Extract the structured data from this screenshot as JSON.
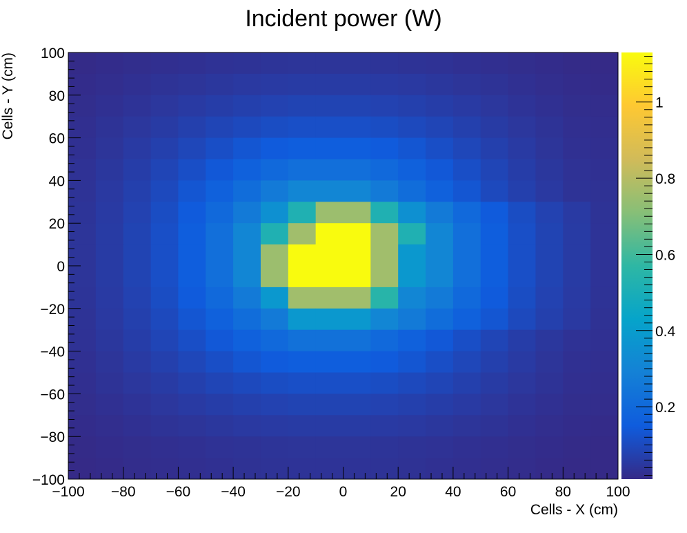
{
  "chart_data": {
    "type": "heatmap",
    "title": "Incident power (W)",
    "xlabel": "Cells - X (cm)",
    "ylabel": "Cells - Y (cm)",
    "xlim": [
      -100,
      100
    ],
    "ylim": [
      -100,
      100
    ],
    "x_ticks": [
      -100,
      -80,
      -60,
      -40,
      -20,
      0,
      20,
      40,
      60,
      80,
      100
    ],
    "y_ticks": [
      -100,
      -80,
      -60,
      -40,
      -20,
      0,
      20,
      40,
      60,
      80,
      100
    ],
    "x_tick_labels": [
      "−100",
      "−80",
      "−60",
      "−40",
      "−20",
      "0",
      "20",
      "40",
      "60",
      "80",
      "100"
    ],
    "y_tick_labels": [
      "−100",
      "−80",
      "−60",
      "−40",
      "−20",
      "0",
      "20",
      "40",
      "60",
      "80",
      "100"
    ],
    "bins": {
      "x_edges": [
        -100,
        -90,
        -80,
        -70,
        -60,
        -50,
        -40,
        -30,
        -20,
        -10,
        10,
        20,
        30,
        40,
        50,
        60,
        70,
        80,
        90,
        100
      ],
      "y_edges": [
        -100,
        -90,
        -80,
        -70,
        -60,
        -50,
        -40,
        -30,
        -20,
        -10,
        10,
        20,
        30,
        40,
        50,
        60,
        70,
        80,
        90,
        100
      ]
    },
    "function_note": "",
    "colorbar": {
      "min": 0.01,
      "max": 1.13,
      "ticks": [
        0.2,
        0.4,
        0.6,
        0.8,
        1
      ],
      "tick_labels": [
        "0.2",
        "0.4",
        "0.6",
        "0.8",
        "1"
      ],
      "palette": [
        "#352a87",
        "#0f5cdd",
        "#1481d6",
        "#06a4ca",
        "#2eb7a4",
        "#87bf77",
        "#d1bb59",
        "#fec832",
        "#f9fb0e"
      ]
    },
    "grid": false,
    "values": [
      [
        0.012,
        0.016,
        0.02,
        0.024,
        0.028,
        0.032,
        0.035,
        0.038,
        0.04,
        0.04,
        0.038,
        0.035,
        0.032,
        0.028,
        0.024,
        0.02,
        0.016,
        0.012,
        0.01
      ],
      [
        0.016,
        0.022,
        0.028,
        0.034,
        0.04,
        0.046,
        0.052,
        0.056,
        0.058,
        0.058,
        0.056,
        0.052,
        0.046,
        0.04,
        0.034,
        0.028,
        0.022,
        0.016,
        0.014
      ],
      [
        0.02,
        0.028,
        0.036,
        0.045,
        0.055,
        0.064,
        0.072,
        0.078,
        0.082,
        0.082,
        0.078,
        0.072,
        0.064,
        0.055,
        0.045,
        0.036,
        0.028,
        0.02,
        0.018
      ],
      [
        0.024,
        0.034,
        0.045,
        0.058,
        0.072,
        0.086,
        0.098,
        0.108,
        0.114,
        0.114,
        0.108,
        0.098,
        0.086,
        0.072,
        0.058,
        0.045,
        0.034,
        0.024,
        0.021
      ],
      [
        0.028,
        0.04,
        0.055,
        0.072,
        0.092,
        0.112,
        0.132,
        0.148,
        0.158,
        0.158,
        0.148,
        0.132,
        0.112,
        0.092,
        0.072,
        0.055,
        0.04,
        0.028,
        0.025
      ],
      [
        0.032,
        0.046,
        0.064,
        0.086,
        0.112,
        0.14,
        0.17,
        0.198,
        0.22,
        0.22,
        0.198,
        0.17,
        0.14,
        0.112,
        0.086,
        0.064,
        0.046,
        0.032,
        0.028
      ],
      [
        0.035,
        0.052,
        0.072,
        0.098,
        0.132,
        0.17,
        0.215,
        0.265,
        0.31,
        0.31,
        0.265,
        0.215,
        0.17,
        0.132,
        0.098,
        0.072,
        0.052,
        0.035,
        0.031
      ],
      [
        0.038,
        0.056,
        0.078,
        0.108,
        0.148,
        0.198,
        0.265,
        0.35,
        0.52,
        0.75,
        0.52,
        0.35,
        0.265,
        0.198,
        0.148,
        0.108,
        0.078,
        0.056,
        0.034
      ],
      [
        0.04,
        0.058,
        0.082,
        0.114,
        0.158,
        0.22,
        0.31,
        0.52,
        0.76,
        1.13,
        0.76,
        0.52,
        0.31,
        0.22,
        0.158,
        0.114,
        0.082,
        0.058,
        0.036
      ],
      [
        0.04,
        0.058,
        0.082,
        0.114,
        0.158,
        0.22,
        0.31,
        0.75,
        1.13,
        1.13,
        0.76,
        0.38,
        0.31,
        0.22,
        0.158,
        0.114,
        0.082,
        0.058,
        0.036
      ],
      [
        0.038,
        0.056,
        0.078,
        0.108,
        0.148,
        0.198,
        0.265,
        0.38,
        0.76,
        0.76,
        0.55,
        0.31,
        0.265,
        0.198,
        0.148,
        0.108,
        0.078,
        0.056,
        0.034
      ],
      [
        0.035,
        0.052,
        0.072,
        0.098,
        0.132,
        0.17,
        0.215,
        0.265,
        0.38,
        0.38,
        0.31,
        0.265,
        0.215,
        0.17,
        0.132,
        0.098,
        0.072,
        0.052,
        0.031
      ],
      [
        0.032,
        0.046,
        0.064,
        0.086,
        0.112,
        0.14,
        0.17,
        0.198,
        0.23,
        0.23,
        0.198,
        0.17,
        0.14,
        0.112,
        0.086,
        0.064,
        0.046,
        0.032,
        0.028
      ],
      [
        0.028,
        0.04,
        0.055,
        0.072,
        0.092,
        0.112,
        0.132,
        0.148,
        0.158,
        0.158,
        0.148,
        0.132,
        0.112,
        0.092,
        0.072,
        0.055,
        0.04,
        0.028,
        0.025
      ],
      [
        0.024,
        0.034,
        0.045,
        0.058,
        0.072,
        0.086,
        0.098,
        0.108,
        0.114,
        0.114,
        0.108,
        0.098,
        0.086,
        0.072,
        0.058,
        0.045,
        0.034,
        0.024,
        0.021
      ],
      [
        0.02,
        0.028,
        0.036,
        0.045,
        0.055,
        0.064,
        0.072,
        0.078,
        0.082,
        0.082,
        0.078,
        0.072,
        0.064,
        0.055,
        0.045,
        0.036,
        0.028,
        0.02,
        0.018
      ],
      [
        0.016,
        0.022,
        0.028,
        0.034,
        0.04,
        0.046,
        0.052,
        0.056,
        0.058,
        0.058,
        0.056,
        0.052,
        0.046,
        0.04,
        0.034,
        0.028,
        0.022,
        0.016,
        0.014
      ],
      [
        0.012,
        0.016,
        0.02,
        0.024,
        0.028,
        0.032,
        0.035,
        0.038,
        0.04,
        0.04,
        0.038,
        0.035,
        0.032,
        0.028,
        0.024,
        0.02,
        0.016,
        0.012,
        0.01
      ],
      [
        0.01,
        0.014,
        0.018,
        0.021,
        0.025,
        0.028,
        0.031,
        0.034,
        0.036,
        0.036,
        0.034,
        0.031,
        0.028,
        0.025,
        0.021,
        0.018,
        0.014,
        0.01,
        0.009
      ]
    ]
  }
}
